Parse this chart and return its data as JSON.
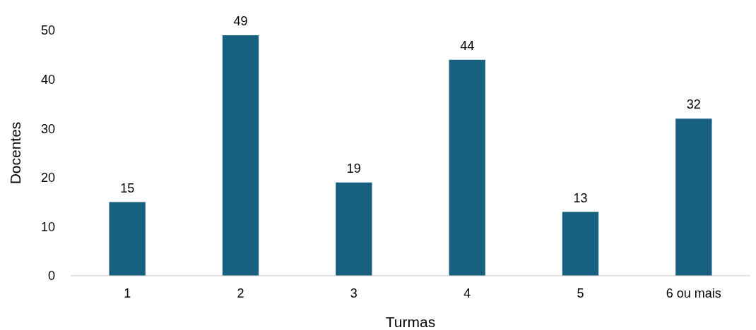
{
  "chart_data": {
    "type": "bar",
    "xlabel": "Turmas",
    "ylabel": "Docentes",
    "categories": [
      "1",
      "2",
      "3",
      "4",
      "5",
      "6 ou mais"
    ],
    "values": [
      15,
      49,
      19,
      44,
      13,
      32
    ],
    "color": "#17607f",
    "ylim": [
      0,
      50
    ],
    "yticks": [
      0,
      10,
      20,
      30,
      40,
      50
    ],
    "grid": false,
    "data_labels": true
  }
}
